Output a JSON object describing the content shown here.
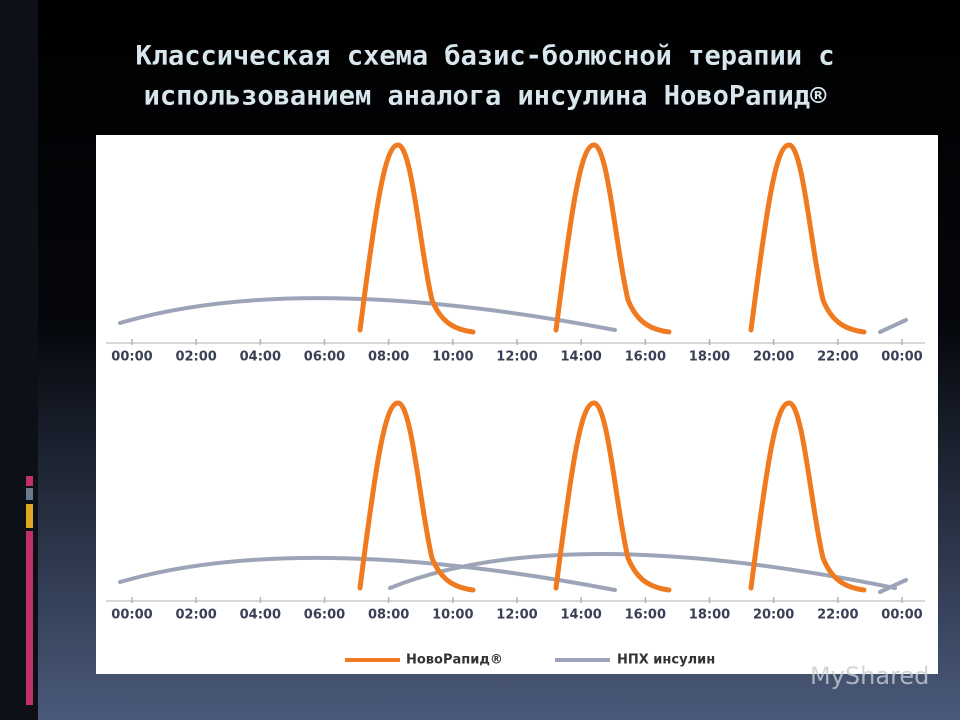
{
  "header": {
    "title": [
      "Классическая схема базис-болюсной терапии с",
      "использованием аналога инсулина НовоРапид®"
    ]
  },
  "panels": [
    {
      "ticks": [
        "00:00",
        "02:00",
        "04:00",
        "06:00",
        "08:00",
        "10:00",
        "12:00",
        "14:00",
        "16:00",
        "18:00",
        "20:00",
        "22:00",
        "00:00"
      ]
    },
    {
      "ticks": [
        "00:00",
        "02:00",
        "04:00",
        "06:00",
        "08:00",
        "10:00",
        "12:00",
        "14:00",
        "16:00",
        "18:00",
        "20:00",
        "22:00",
        "00:00"
      ]
    }
  ],
  "legend": [
    "НовоРапид®",
    "НПХ инсулин"
  ],
  "watermark": "MyShared"
}
